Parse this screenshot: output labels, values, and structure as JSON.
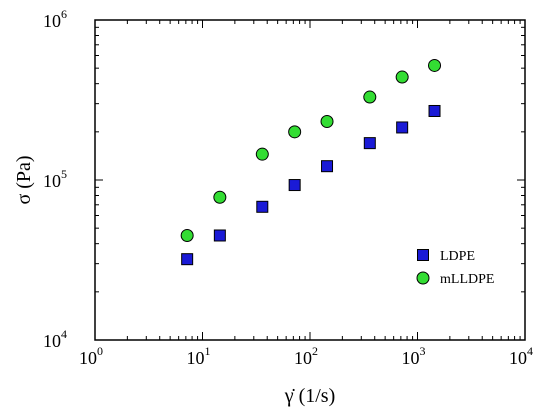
{
  "chart_data": {
    "type": "scatter",
    "xscale": "log",
    "yscale": "log",
    "xlim": [
      1,
      10000
    ],
    "ylim": [
      10000,
      1000000
    ],
    "xlabel": "γ̇ (1/s)",
    "ylabel": "σ (Pa)",
    "xticks": [
      {
        "value": 1,
        "base": "10",
        "exp": "0"
      },
      {
        "value": 10,
        "base": "10",
        "exp": "1"
      },
      {
        "value": 100,
        "base": "10",
        "exp": "2"
      },
      {
        "value": 1000,
        "base": "10",
        "exp": "3"
      },
      {
        "value": 10000,
        "base": "10",
        "exp": "4"
      }
    ],
    "yticks": [
      {
        "value": 10000,
        "base": "10",
        "exp": "4"
      },
      {
        "value": 100000,
        "base": "10",
        "exp": "5"
      },
      {
        "value": 1000000,
        "base": "10",
        "exp": "6"
      }
    ],
    "legend_position": "lower-right",
    "grid": false,
    "series": [
      {
        "name": "LDPE",
        "marker": "square",
        "color": "#1a1ad6",
        "x": [
          7.2,
          14.5,
          36,
          72,
          144,
          360,
          720,
          1440
        ],
        "y": [
          32000,
          45000,
          68000,
          93000,
          122000,
          170000,
          213000,
          270000
        ]
      },
      {
        "name": "mLLDPE",
        "marker": "circle",
        "color": "#33dd33",
        "x": [
          7.2,
          14.5,
          36,
          72,
          144,
          360,
          720,
          1440
        ],
        "y": [
          45000,
          78000,
          145000,
          200000,
          232000,
          330000,
          440000,
          520000
        ]
      }
    ]
  }
}
